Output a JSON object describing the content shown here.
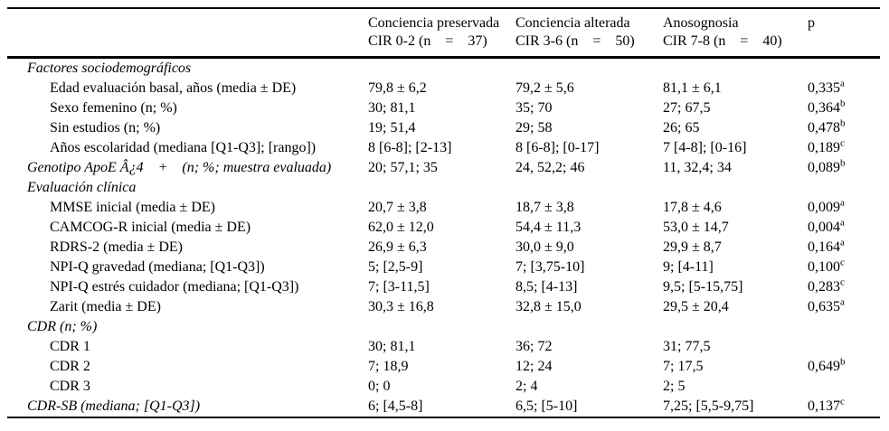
{
  "colors": {
    "text": "#000000",
    "background": "#ffffff",
    "rule": "#000000"
  },
  "table": {
    "header": [
      {
        "line1": "Conciencia preservada",
        "line2": "CIR 0-2 (n    =    37)"
      },
      {
        "line1": "Conciencia alterada",
        "line2": "CIR 3-6 (n    =    50)"
      },
      {
        "line1": "Anosognosia",
        "line2": "CIR 7-8 (n    =    40)"
      },
      {
        "line1": "p",
        "line2": ""
      }
    ],
    "rows": [
      {
        "label": "Factores sociodemográficos",
        "style": "section",
        "values": [
          "",
          "",
          ""
        ],
        "p": "",
        "p_sup": ""
      },
      {
        "label": "Edad evaluación basal, años (media ± DE)",
        "style": "item",
        "values": [
          "79,8 ± 6,2",
          "79,2 ± 5,6",
          "81,1 ± 6,1"
        ],
        "p": "0,335",
        "p_sup": "a"
      },
      {
        "label": "Sexo femenino (n; %)",
        "style": "item",
        "values": [
          "30; 81,1",
          "35; 70",
          "27; 67,5"
        ],
        "p": "0,364",
        "p_sup": "b"
      },
      {
        "label": "Sin estudios (n; %)",
        "style": "item",
        "values": [
          "19; 51,4",
          "29; 58",
          "26; 65"
        ],
        "p": "0,478",
        "p_sup": "b"
      },
      {
        "label": "Años escolaridad (mediana [Q1-Q3]; [rango])",
        "style": "item",
        "values": [
          "8 [6-8]; [2-13]",
          "8 [6-8]; [0-17]",
          "7 [4-8]; [0-16]"
        ],
        "p": "0,189",
        "p_sup": "c"
      },
      {
        "label": "Genotipo ApoE Â¿4    +    (n; %; muestra evaluada)",
        "style": "section",
        "values": [
          "20; 57,1; 35",
          "24, 52,2; 46",
          "11, 32,4; 34"
        ],
        "p": "0,089",
        "p_sup": "b"
      },
      {
        "label": "Evaluación clínica",
        "style": "section",
        "values": [
          "",
          "",
          ""
        ],
        "p": "",
        "p_sup": ""
      },
      {
        "label": "MMSE inicial (media ± DE)",
        "style": "item",
        "values": [
          "20,7 ± 3,8",
          "18,7 ± 3,8",
          "17,8 ± 4,6"
        ],
        "p": "0,009",
        "p_sup": "a"
      },
      {
        "label": "CAMCOG-R inicial (media ± DE)",
        "style": "item",
        "values": [
          "62,0 ± 12,0",
          "54,4 ± 11,3",
          "53,0 ± 14,7"
        ],
        "p": "0,004",
        "p_sup": "a"
      },
      {
        "label": "RDRS-2 (media ± DE)",
        "style": "item",
        "values": [
          "26,9 ± 6,3",
          "30,0 ± 9,0",
          "29,9 ± 8,7"
        ],
        "p": "0,164",
        "p_sup": "a"
      },
      {
        "label": "NPI-Q gravedad (mediana; [Q1-Q3])",
        "style": "item",
        "values": [
          "5; [2,5-9]",
          "7; [3,75-10]",
          "9; [4-11]"
        ],
        "p": "0,100",
        "p_sup": "c"
      },
      {
        "label": "NPI-Q estrés cuidador (mediana; [Q1-Q3])",
        "style": "item",
        "values": [
          "7; [3-11,5]",
          "8,5; [4-13]",
          "9,5; [5-15,75]"
        ],
        "p": "0,283",
        "p_sup": "c"
      },
      {
        "label": "Zarit (media ± DE)",
        "style": "item",
        "values": [
          "30,3 ± 16,8",
          "32,8 ± 15,0",
          "29,5 ± 20,4"
        ],
        "p": "0,635",
        "p_sup": "a"
      },
      {
        "label": "CDR (n; %)",
        "style": "section",
        "values": [
          "",
          "",
          ""
        ],
        "p": "",
        "p_sup": ""
      },
      {
        "label": "CDR 1",
        "style": "item",
        "values": [
          "30; 81,1",
          "36; 72",
          "31; 77,5"
        ],
        "p": "",
        "p_sup": ""
      },
      {
        "label": "CDR 2",
        "style": "item",
        "values": [
          "7; 18,9",
          "12; 24",
          "7; 17,5"
        ],
        "p": "0,649",
        "p_sup": "b"
      },
      {
        "label": "CDR 3",
        "style": "item",
        "values": [
          "0; 0",
          "2; 4",
          "2; 5"
        ],
        "p": "",
        "p_sup": ""
      },
      {
        "label": "CDR-SB (mediana; [Q1-Q3])",
        "style": "section",
        "values": [
          "6; [4,5-8]",
          "6,5; [5-10]",
          "7,25; [5,5-9,75]"
        ],
        "p": "0,137",
        "p_sup": "c"
      }
    ]
  }
}
